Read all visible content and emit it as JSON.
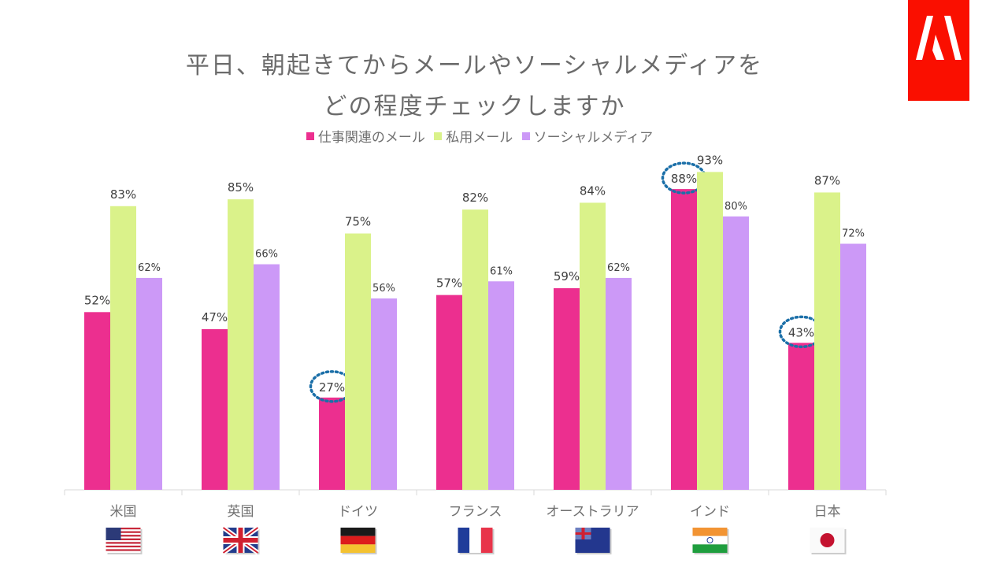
{
  "chart_data": {
    "type": "bar",
    "title": [
      "平日、朝起きてからメールやソーシャルメディアを",
      "どの程度チェックしますか"
    ],
    "categories": [
      "米国",
      "英国",
      "ドイツ",
      "フランス",
      "オーストラリア",
      "インド",
      "日本"
    ],
    "series": [
      {
        "name": "仕事関連のメール",
        "color": "#ec2f8f",
        "values": [
          52,
          47,
          27,
          57,
          59,
          88,
          43
        ]
      },
      {
        "name": "私用メール",
        "color": "#daf28a",
        "values": [
          83,
          85,
          75,
          82,
          84,
          93,
          87
        ]
      },
      {
        "name": "ソーシャルメディア",
        "color": "#cc99f7",
        "values": [
          62,
          66,
          56,
          61,
          62,
          80,
          72
        ]
      }
    ],
    "ylim": [
      0,
      100
    ],
    "value_format": "percent",
    "highlighted": [
      {
        "series": 0,
        "category": "ドイツ"
      },
      {
        "series": 0,
        "category": "インド"
      },
      {
        "series": 0,
        "category": "日本"
      }
    ],
    "highlight_color": "#1b6fa8",
    "flags": [
      "us-flag",
      "uk-flag",
      "germany-flag",
      "france-flag",
      "australia-flag",
      "india-flag",
      "japan-flag"
    ],
    "grid": false,
    "legend": "top"
  },
  "logo": {
    "text": "Adobe",
    "color": "#fa0f00"
  }
}
